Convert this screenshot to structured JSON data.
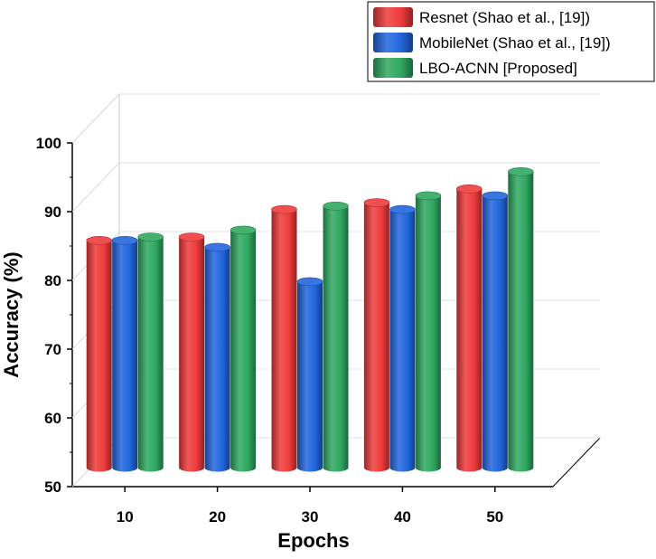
{
  "chart_data": {
    "type": "bar",
    "xlabel": "Epochs",
    "ylabel": "Accuracy (%)",
    "categories": [
      "10",
      "20",
      "30",
      "40",
      "50"
    ],
    "ylim": [
      50,
      100
    ],
    "yticks": [
      50,
      60,
      70,
      80,
      90,
      100
    ],
    "grid": true,
    "legend_position": "top-right",
    "series": [
      {
        "name": "Resnet (Shao et al., [19])",
        "color": "#ee3b3b",
        "values": [
          87.0,
          87.5,
          91.5,
          92.5,
          94.5
        ]
      },
      {
        "name": "MobileNet (Shao et al., [19])",
        "color": "#2266dd",
        "values": [
          87.0,
          86.0,
          81.0,
          91.5,
          93.5
        ]
      },
      {
        "name": "LBO-ACNN [Proposed]",
        "color": "#2fa860",
        "values": [
          87.5,
          88.5,
          92.0,
          93.5,
          97.0
        ]
      }
    ]
  }
}
